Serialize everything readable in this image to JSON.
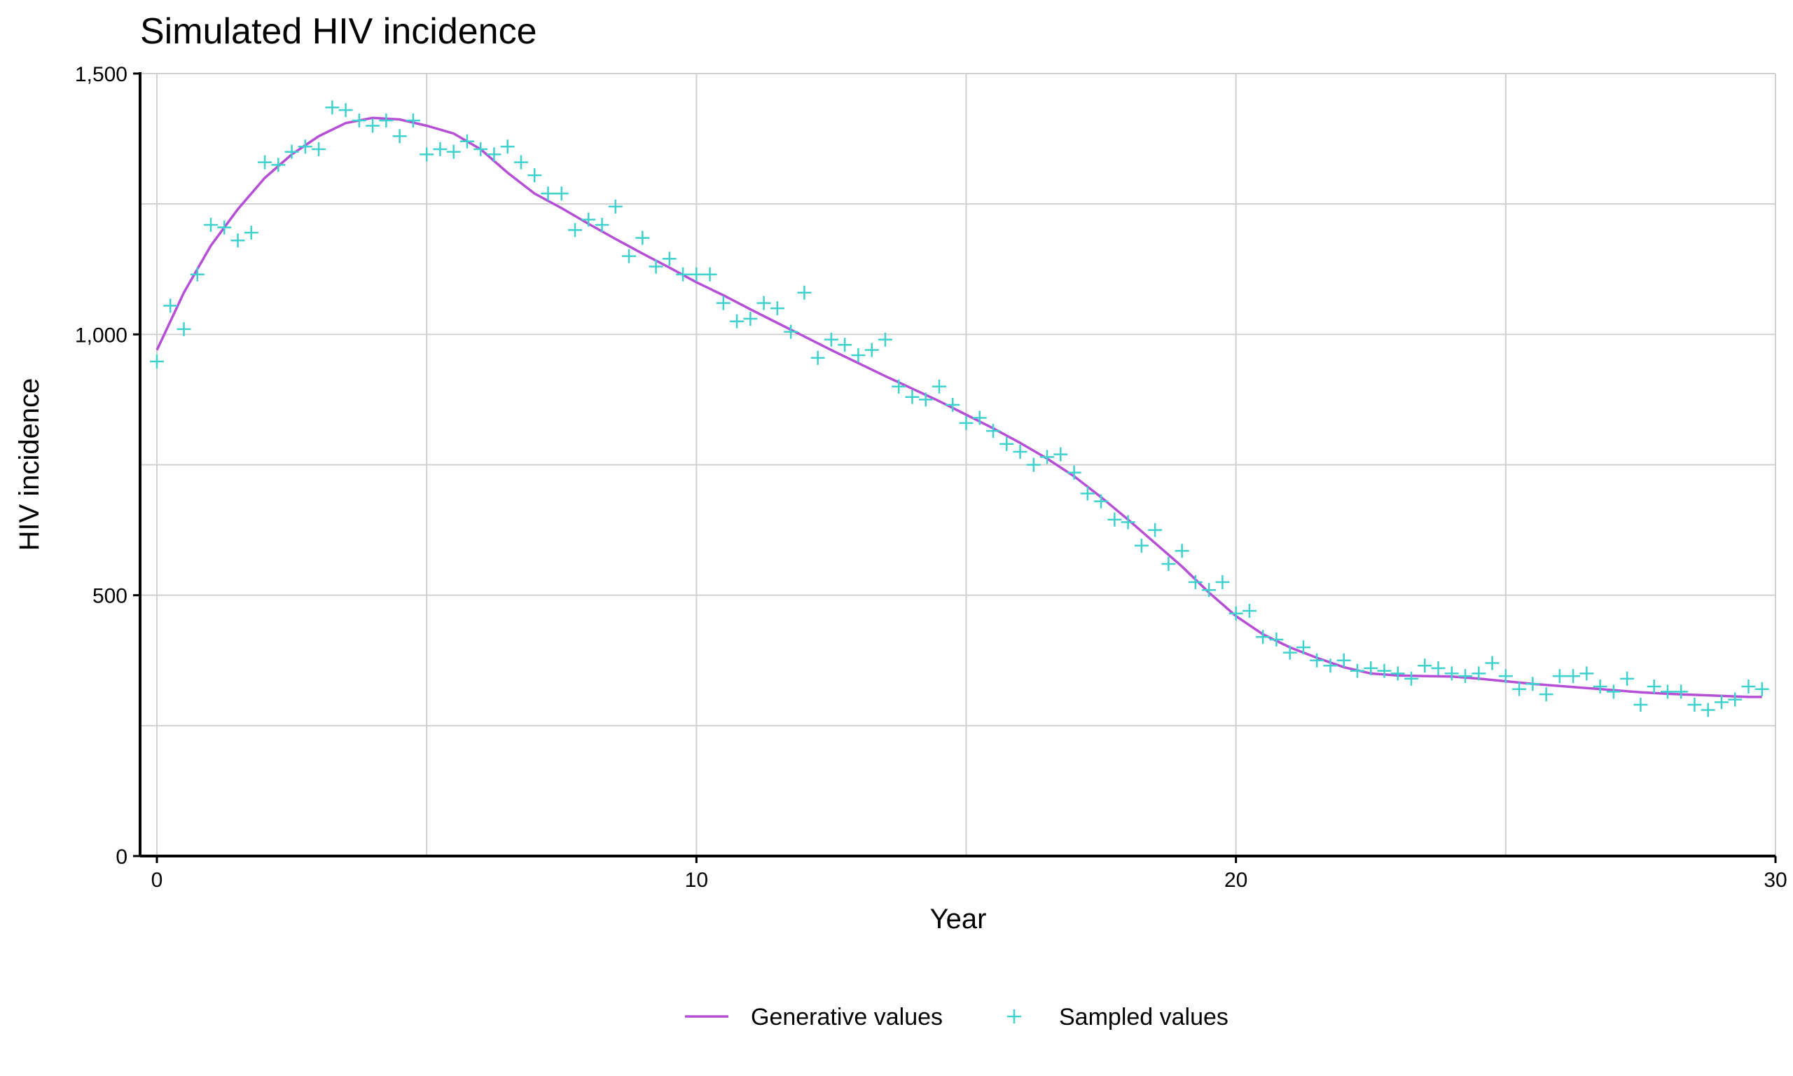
{
  "chart_data": {
    "type": "line",
    "title": "Simulated HIV incidence",
    "xlabel": "Year",
    "ylabel": "HIV incidence",
    "xlim": [
      0,
      30
    ],
    "ylim": [
      0,
      1500
    ],
    "x_ticks": [
      0,
      10,
      20,
      30
    ],
    "x_tick_labels": [
      "0",
      "10",
      "20",
      "30"
    ],
    "y_ticks": [
      0,
      500,
      1000,
      1500
    ],
    "y_tick_labels": [
      "0",
      "500",
      "1,000",
      "1,500"
    ],
    "grid": true,
    "legend_position": "bottom",
    "series": [
      {
        "name": "Generative values",
        "kind": "line",
        "color": "#b54fd6",
        "x": [
          0,
          0.5,
          1,
          1.5,
          2,
          2.5,
          3,
          3.5,
          4,
          4.5,
          5,
          5.5,
          6,
          6.5,
          7,
          7.5,
          8,
          8.5,
          9,
          9.5,
          10,
          10.5,
          11,
          11.5,
          12,
          12.5,
          13,
          13.5,
          14,
          14.5,
          15,
          15.5,
          16,
          16.5,
          17,
          17.5,
          18,
          18.5,
          19,
          19.5,
          20,
          20.5,
          21,
          21.5,
          22,
          22.5,
          23,
          23.5,
          24,
          24.5,
          25,
          25.5,
          26,
          26.5,
          27,
          27.5,
          28,
          28.5,
          29,
          29.5,
          29.75
        ],
        "y": [
          970,
          1080,
          1170,
          1240,
          1300,
          1345,
          1380,
          1405,
          1415,
          1412,
          1400,
          1385,
          1355,
          1310,
          1270,
          1242,
          1212,
          1183,
          1155,
          1128,
          1100,
          1075,
          1048,
          1022,
          996,
          970,
          945,
          920,
          896,
          872,
          846,
          820,
          792,
          762,
          728,
          688,
          645,
          600,
          555,
          505,
          460,
          425,
          400,
          380,
          362,
          350,
          346,
          345,
          344,
          340,
          335,
          330,
          326,
          322,
          318,
          314,
          311,
          309,
          307,
          305,
          305
        ]
      },
      {
        "name": "Sampled values",
        "kind": "scatter",
        "marker": "+",
        "color": "#3fd1cd",
        "x": [
          0,
          0.25,
          0.5,
          0.75,
          1,
          1.25,
          1.5,
          1.75,
          2,
          2.25,
          2.5,
          2.75,
          3,
          3.25,
          3.5,
          3.75,
          4,
          4.25,
          4.5,
          4.75,
          5,
          5.25,
          5.5,
          5.75,
          6,
          6.25,
          6.5,
          6.75,
          7,
          7.25,
          7.5,
          7.75,
          8,
          8.25,
          8.5,
          8.75,
          9,
          9.25,
          9.5,
          9.75,
          10,
          10.25,
          10.5,
          10.75,
          11,
          11.25,
          11.5,
          11.75,
          12,
          12.25,
          12.5,
          12.75,
          13,
          13.25,
          13.5,
          13.75,
          14,
          14.25,
          14.5,
          14.75,
          15,
          15.25,
          15.5,
          15.75,
          16,
          16.25,
          16.5,
          16.75,
          17,
          17.25,
          17.5,
          17.75,
          18,
          18.25,
          18.5,
          18.75,
          19,
          19.25,
          19.5,
          19.75,
          20,
          20.25,
          20.5,
          20.75,
          21,
          21.25,
          21.5,
          21.75,
          22,
          22.25,
          22.5,
          22.75,
          23,
          23.25,
          23.5,
          23.75,
          24,
          24.25,
          24.5,
          24.75,
          25,
          25.25,
          25.5,
          25.75,
          26,
          26.25,
          26.5,
          26.75,
          27,
          27.25,
          27.5,
          27.75,
          28,
          28.25,
          28.5,
          28.75,
          29,
          29.25,
          29.5,
          29.75
        ],
        "y": [
          948,
          1055,
          1010,
          1115,
          1210,
          1205,
          1180,
          1195,
          1330,
          1325,
          1350,
          1360,
          1355,
          1435,
          1430,
          1410,
          1400,
          1410,
          1380,
          1410,
          1345,
          1355,
          1350,
          1370,
          1355,
          1345,
          1360,
          1330,
          1305,
          1270,
          1270,
          1200,
          1220,
          1210,
          1245,
          1150,
          1185,
          1130,
          1145,
          1115,
          1115,
          1115,
          1060,
          1025,
          1030,
          1060,
          1050,
          1005,
          1080,
          955,
          990,
          980,
          960,
          970,
          990,
          900,
          880,
          875,
          900,
          865,
          830,
          840,
          815,
          790,
          775,
          750,
          765,
          770,
          735,
          695,
          680,
          645,
          640,
          595,
          625,
          560,
          585,
          525,
          510,
          525,
          465,
          470,
          420,
          415,
          390,
          400,
          375,
          365,
          375,
          355,
          360,
          355,
          350,
          340,
          365,
          360,
          350,
          345,
          350,
          370,
          345,
          320,
          330,
          310,
          345,
          345,
          350,
          325,
          315,
          340,
          290,
          325,
          315,
          315,
          290,
          280,
          295,
          300,
          325,
          320
        ]
      }
    ]
  }
}
